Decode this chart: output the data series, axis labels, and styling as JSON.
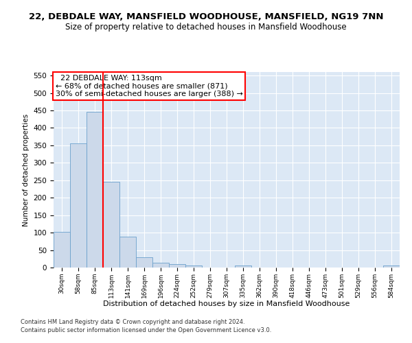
{
  "title": "22, DEBDALE WAY, MANSFIELD WOODHOUSE, MANSFIELD, NG19 7NN",
  "subtitle": "Size of property relative to detached houses in Mansfield Woodhouse",
  "xlabel": "Distribution of detached houses by size in Mansfield Woodhouse",
  "ylabel": "Number of detached properties",
  "footnote1": "Contains HM Land Registry data © Crown copyright and database right 2024.",
  "footnote2": "Contains public sector information licensed under the Open Government Licence v3.0.",
  "bin_labels": [
    "30sqm",
    "58sqm",
    "85sqm",
    "113sqm",
    "141sqm",
    "169sqm",
    "196sqm",
    "224sqm",
    "252sqm",
    "279sqm",
    "307sqm",
    "335sqm",
    "362sqm",
    "390sqm",
    "418sqm",
    "446sqm",
    "473sqm",
    "501sqm",
    "529sqm",
    "556sqm",
    "584sqm"
  ],
  "bar_values": [
    102,
    356,
    447,
    246,
    88,
    30,
    13,
    9,
    6,
    0,
    0,
    6,
    0,
    0,
    0,
    0,
    0,
    0,
    0,
    0,
    6
  ],
  "bar_color": "#ccd9ea",
  "bar_edge_color": "#6aa0cc",
  "red_line_index": 3,
  "red_line_label": "22 DEBDALE WAY: 113sqm",
  "annotation_line2": "← 68% of detached houses are smaller (871)",
  "annotation_line3": "30% of semi-detached houses are larger (388) →",
  "annotation_box_color": "white",
  "annotation_box_edge": "red",
  "ylim": [
    0,
    560
  ],
  "yticks": [
    0,
    50,
    100,
    150,
    200,
    250,
    300,
    350,
    400,
    450,
    500,
    550
  ],
  "bg_color": "#dce8f5",
  "title_fontsize": 9.5,
  "subtitle_fontsize": 8.5,
  "annotation_fontsize": 8
}
